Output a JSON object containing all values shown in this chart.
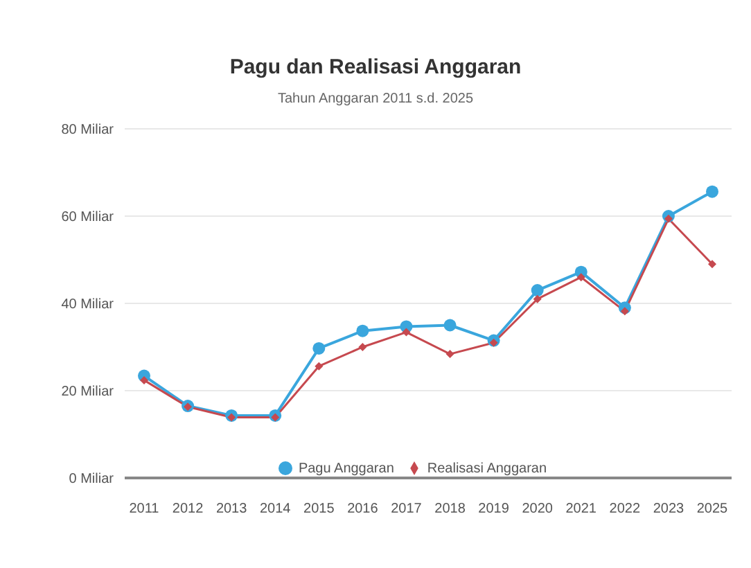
{
  "chart_data": {
    "type": "line",
    "title": "Pagu dan Realisasi Anggaran",
    "subtitle": "Tahun Anggaran 2011 s.d. 2025",
    "categories": [
      "2011",
      "2012",
      "2013",
      "2014",
      "2015",
      "2016",
      "2017",
      "2018",
      "2019",
      "2020",
      "2021",
      "2022",
      "2023",
      "2025"
    ],
    "series": [
      {
        "name": "Pagu Anggaran",
        "color": "#3aa6dd",
        "marker": "circle",
        "values": [
          23.4,
          16.5,
          14.3,
          14.3,
          29.7,
          33.7,
          34.7,
          35,
          31.5,
          43,
          47.2,
          39,
          60,
          65.6
        ]
      },
      {
        "name": "Realisasi Anggaran",
        "color": "#c6494f",
        "marker": "diamond",
        "values": [
          22.4,
          16.3,
          13.9,
          13.9,
          25.6,
          30,
          33.4,
          28.4,
          31,
          41,
          46,
          38.2,
          59.4,
          49
        ]
      }
    ],
    "ylim": [
      0,
      80
    ],
    "yticks": [
      {
        "value": 0,
        "label": "0 Miliar"
      },
      {
        "value": 20,
        "label": "20 Miliar"
      },
      {
        "value": 40,
        "label": "40 Miliar"
      },
      {
        "value": 60,
        "label": "60 Miliar"
      },
      {
        "value": 80,
        "label": "80 Miliar"
      }
    ],
    "grid": "y",
    "legend": "bottom",
    "marker": "circle",
    "line_style": "solid"
  }
}
